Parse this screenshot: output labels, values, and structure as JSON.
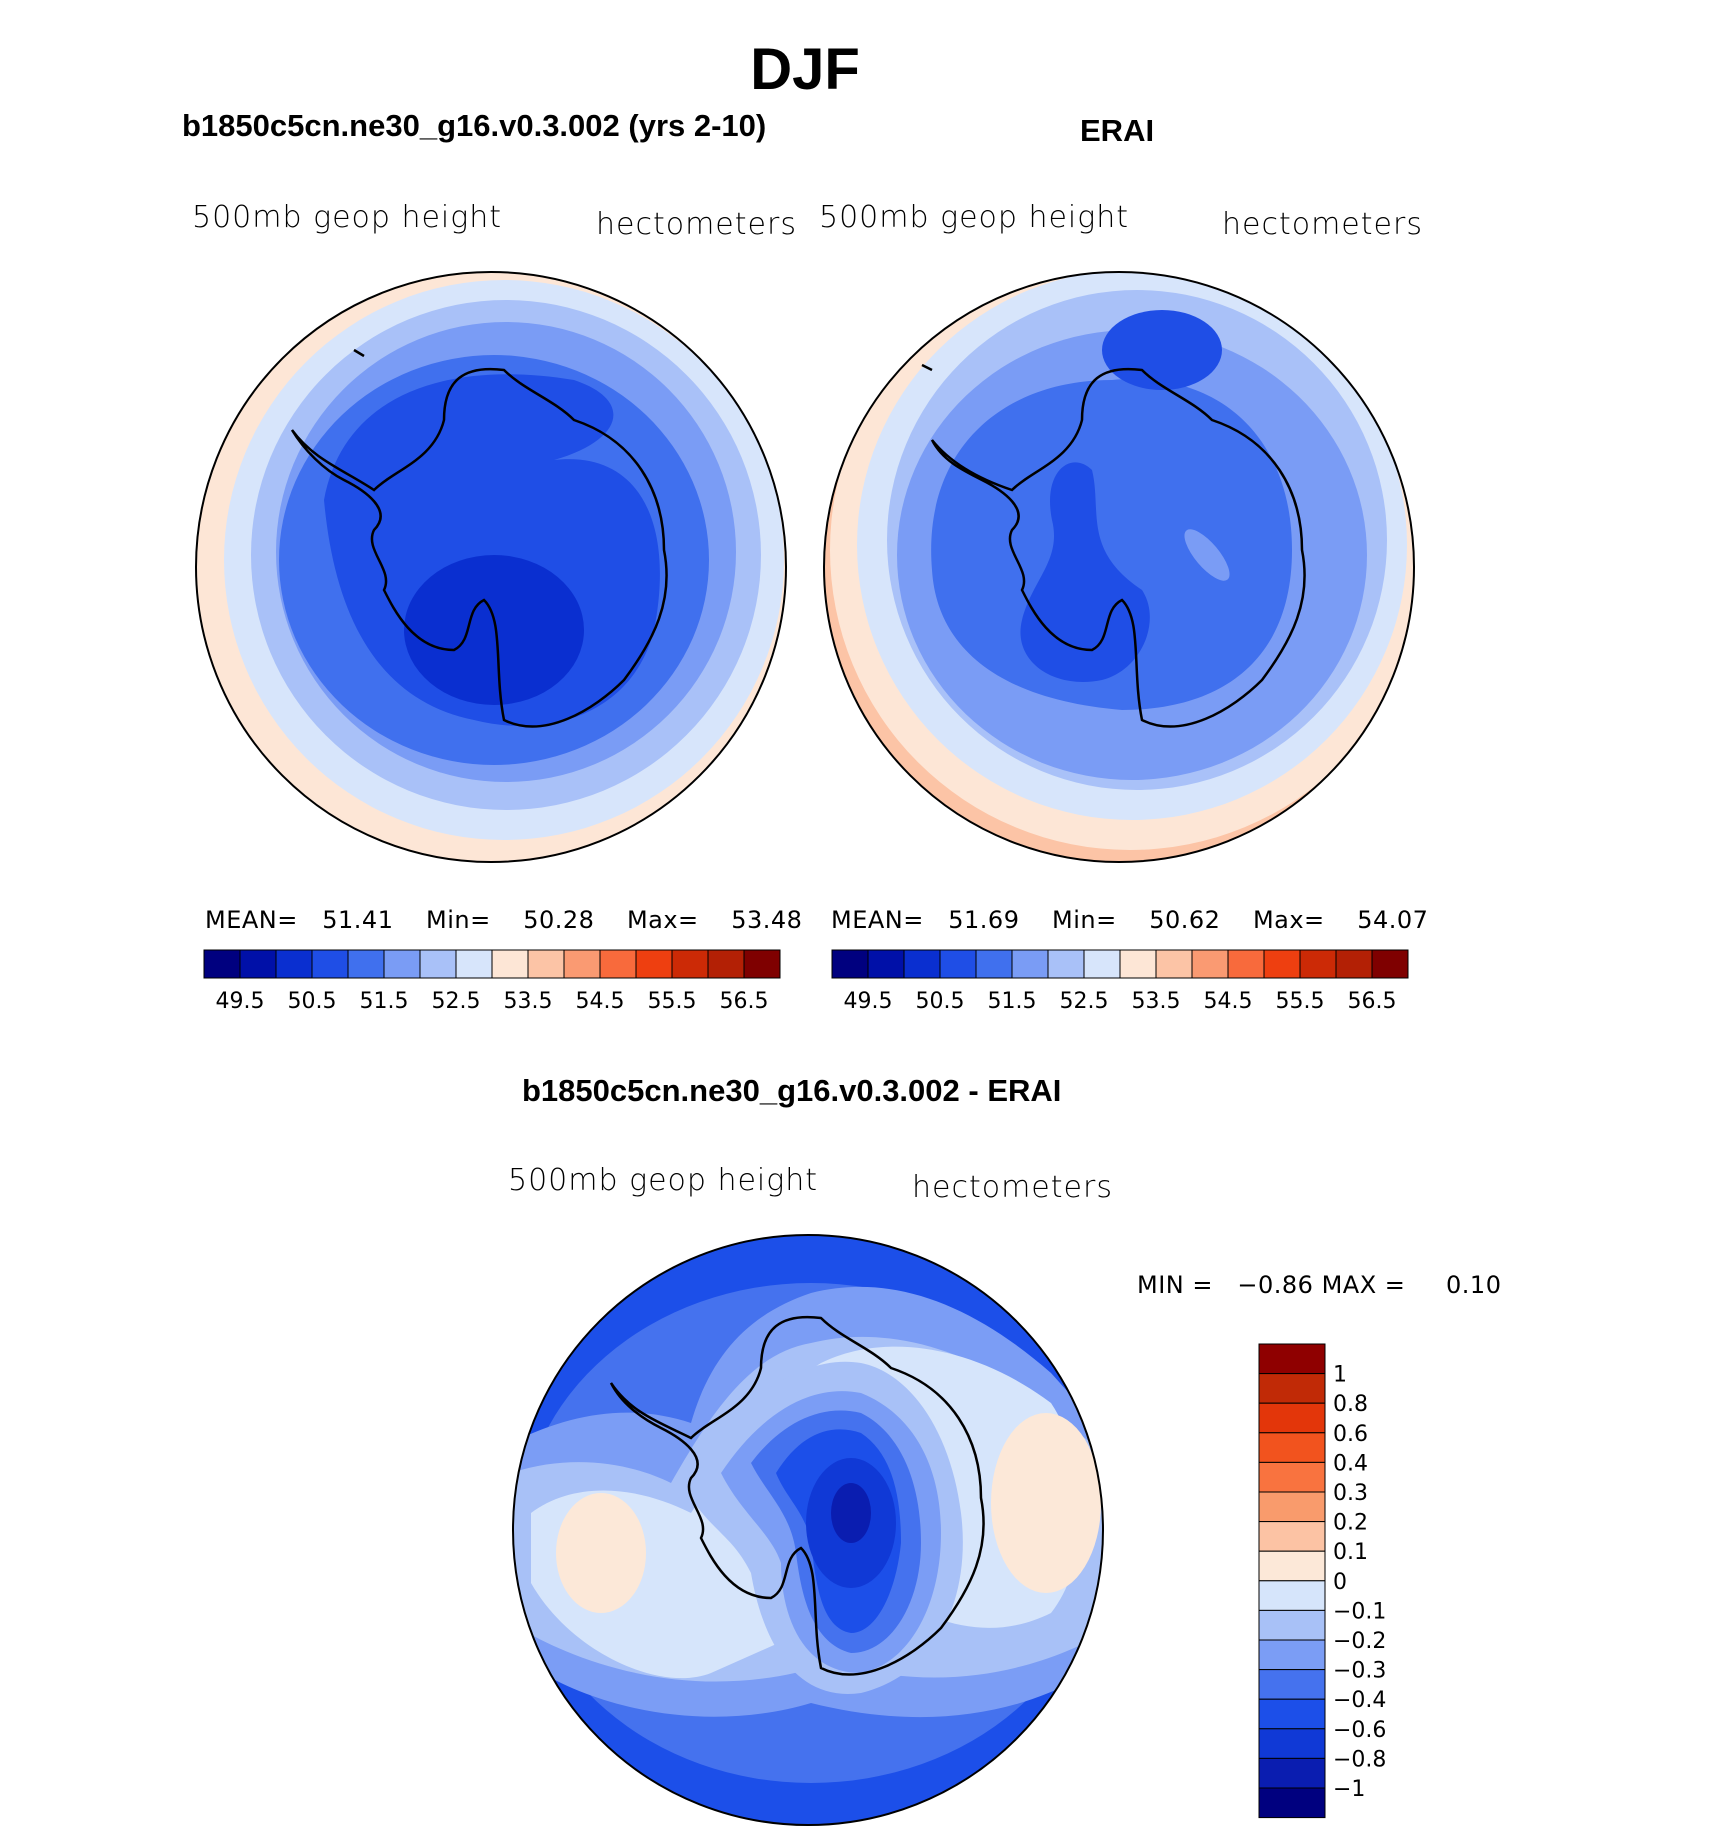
{
  "figure": {
    "title": "DJF",
    "panels": [
      {
        "title": "b1850c5cn.ne30_g16.v0.3.002 (yrs 2-10)",
        "variable": "500mb geop height",
        "units": "hectometers",
        "stats": {
          "mean_label": "MEAN=",
          "mean": "51.41",
          "min_label": "Min=",
          "min": "50.28",
          "max_label": "Max=",
          "max": "53.48"
        }
      },
      {
        "title": "ERAI",
        "variable": "500mb geop height",
        "units": "hectometers",
        "stats": {
          "mean_label": "MEAN=",
          "mean": "51.69",
          "min_label": "Min=",
          "min": "50.62",
          "max_label": "Max=",
          "max": "54.07"
        }
      },
      {
        "title": "b1850c5cn.ne30_g16.v0.3.002 - ERAI",
        "variable": "500mb geop height",
        "units": "hectometers",
        "stats": {
          "min_label": "MIN =",
          "min": "−0.86",
          "max_label": "MAX =",
          "max": "0.10"
        }
      }
    ],
    "abs_colorbar": {
      "colors": [
        "#00007f",
        "#0010a8",
        "#0a2fd0",
        "#1f4ee6",
        "#4070ee",
        "#7a9cf5",
        "#a9c1f8",
        "#d7e5fb",
        "#fde6d6",
        "#fcc4a6",
        "#fa9a72",
        "#f86a3c",
        "#ee3f10",
        "#cc2a06",
        "#b32005",
        "#7f0000"
      ],
      "tick_labels": [
        "49.5",
        "50.5",
        "51.5",
        "52.5",
        "53.5",
        "54.5",
        "55.5",
        "56.5"
      ]
    },
    "diff_colorbar": {
      "colors": [
        "#00007f",
        "#0a1db0",
        "#1039d6",
        "#1c4fe9",
        "#4572ee",
        "#7b9df5",
        "#a8c1f7",
        "#d6e5fb",
        "#fce8d8",
        "#fcc3a4",
        "#f99b6c",
        "#f9733f",
        "#f2531e",
        "#e3360a",
        "#c12a06",
        "#8f0000"
      ],
      "tick_labels": [
        "1",
        "0.8",
        "0.6",
        "0.4",
        "0.3",
        "0.2",
        "0.1",
        "0",
        "−0.1",
        "−0.2",
        "−0.3",
        "−0.4",
        "−0.6",
        "−0.8",
        "−1"
      ]
    }
  }
}
